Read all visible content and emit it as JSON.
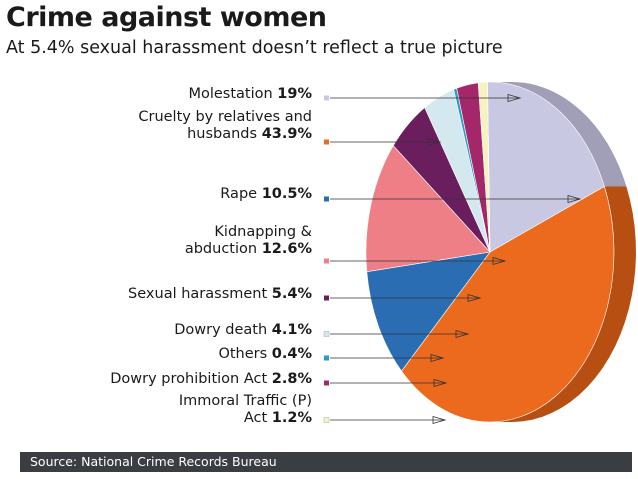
{
  "header": {
    "title": "Crime against women",
    "subtitle": "At 5.4% sexual harassment doesn’t reflect a true picture"
  },
  "footer": {
    "source": "Source: National Crime Records Bureau"
  },
  "chart_data": {
    "type": "pie",
    "title": "Crime against women",
    "subtitle": "At 5.4% sexual harassment doesn’t reflect a true picture",
    "unit": "%",
    "series": [
      {
        "name": "Molestation",
        "value": 19,
        "value_label": "19%",
        "label_lines": [
          "Molestation"
        ],
        "color": "#c9c8e2",
        "side_color": "#a19fb8"
      },
      {
        "name": "Cruelty by relatives and husbands",
        "value": 43.9,
        "value_label": "43.9%",
        "label_lines": [
          "Cruelty by relatives and",
          "husbands"
        ],
        "color": "#ec6a1e",
        "side_color": "#b84f12"
      },
      {
        "name": "Rape",
        "value": 10.5,
        "value_label": "10.5%",
        "label_lines": [
          "Rape"
        ],
        "color": "#2b6db3",
        "side_color": "#1c4c82"
      },
      {
        "name": "Kidnapping & abduction",
        "value": 12.6,
        "value_label": "12.6%",
        "label_lines": [
          "Kidnapping &",
          "abduction"
        ],
        "color": "#ee7f86",
        "side_color": "#c45e66"
      },
      {
        "name": "Sexual harassment",
        "value": 5.4,
        "value_label": "5.4%",
        "label_lines": [
          "Sexual harassment"
        ],
        "color": "#6b1e5e",
        "side_color": "#4c1242"
      },
      {
        "name": "Dowry death",
        "value": 4.1,
        "value_label": "4.1%",
        "label_lines": [
          "Dowry death"
        ],
        "color": "#d4e8ef",
        "side_color": "#a9c3cc"
      },
      {
        "name": "Others",
        "value": 0.4,
        "value_label": "0.4%",
        "label_lines": [
          "Others"
        ],
        "color": "#2a9ac8",
        "side_color": "#1d7399"
      },
      {
        "name": "Dowry prohibition Act",
        "value": 2.8,
        "value_label": "2.8%",
        "label_lines": [
          "Dowry prohibition Act"
        ],
        "color": "#a4276a",
        "side_color": "#7c1c50"
      },
      {
        "name": "Immoral Traffic (P) Act",
        "value": 1.2,
        "value_label": "1.2%",
        "label_lines": [
          "Immoral Traffic (P)",
          "Act"
        ],
        "color": "#f7f3c0",
        "side_color": "#cfcb98"
      }
    ]
  }
}
